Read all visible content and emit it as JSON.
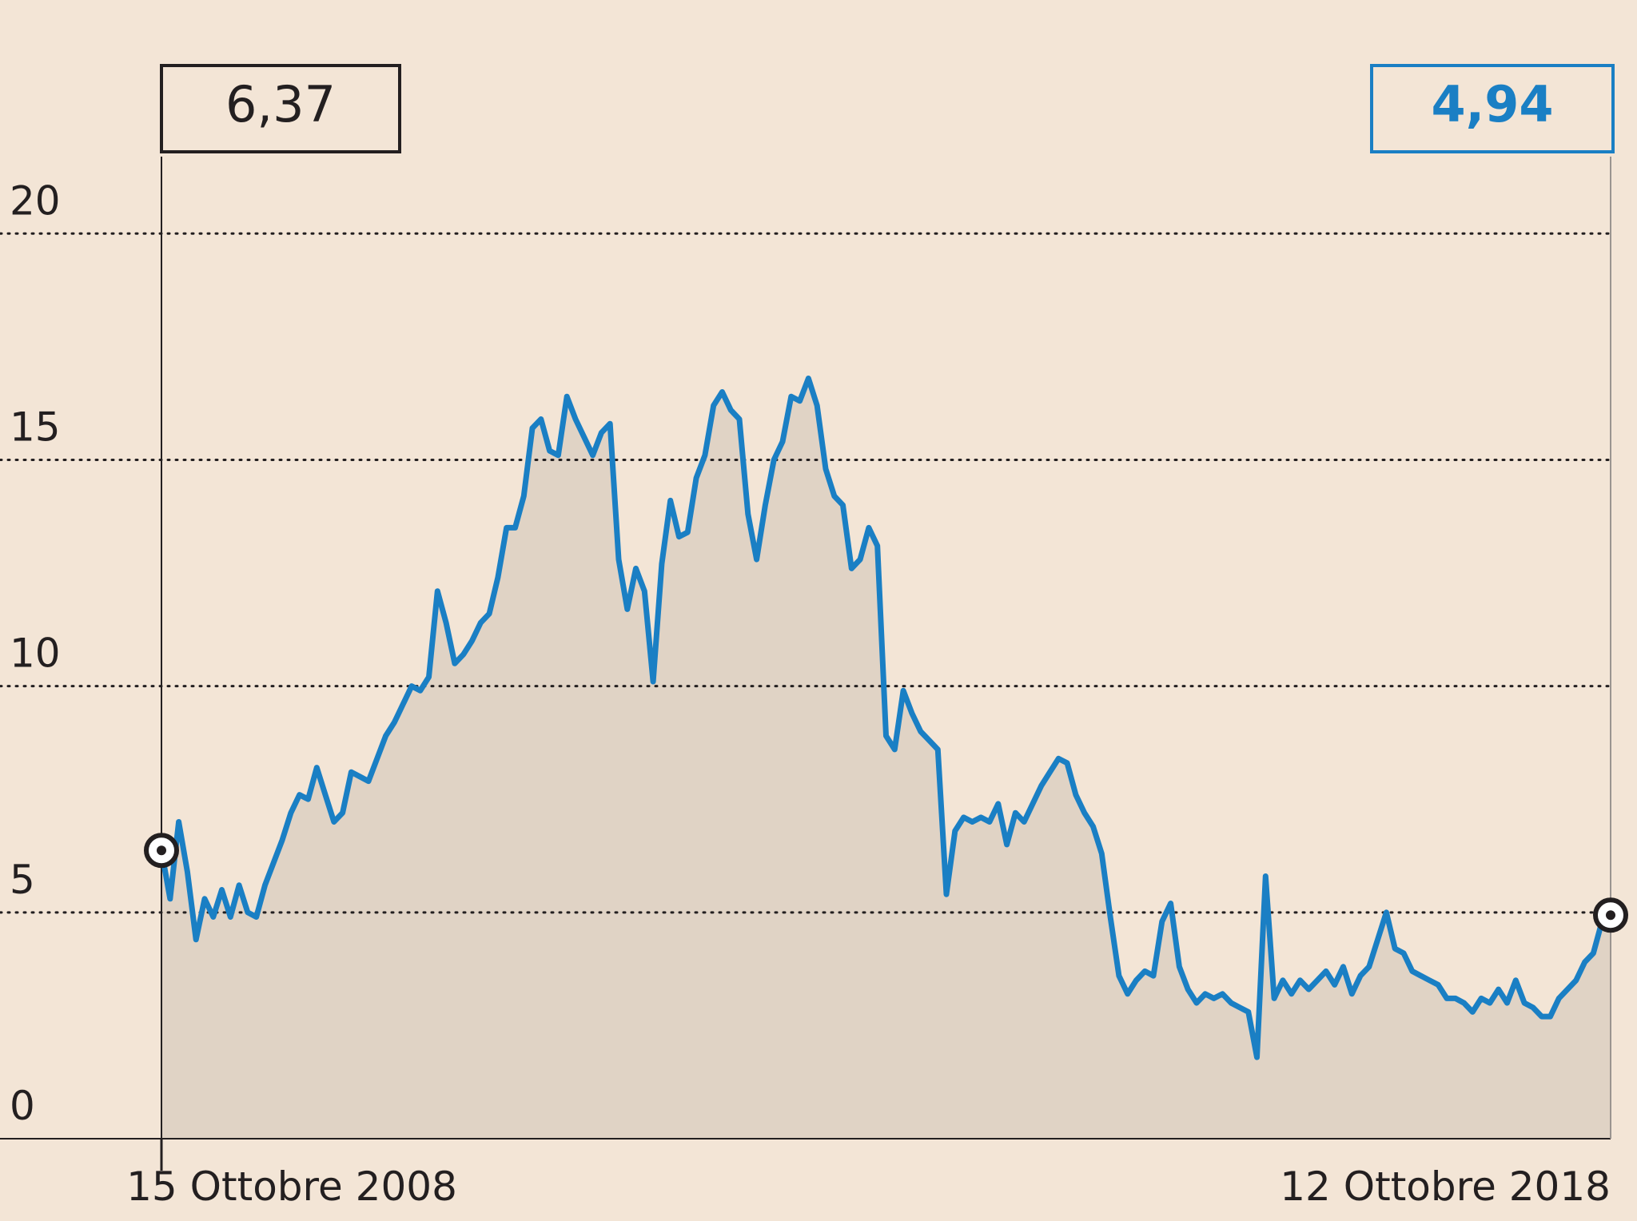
{
  "chart_data": {
    "type": "area",
    "x_labels": [
      "15 Ottobre 2008",
      "12 Ottobre 2018"
    ],
    "values": [
      6.37,
      5.3,
      7.0,
      5.9,
      4.4,
      5.3,
      4.9,
      5.5,
      4.9,
      5.6,
      5.0,
      4.9,
      5.6,
      6.1,
      6.6,
      7.2,
      7.6,
      7.5,
      8.2,
      7.6,
      7.0,
      7.2,
      8.1,
      8.0,
      7.9,
      8.4,
      8.9,
      9.2,
      9.6,
      10.0,
      9.9,
      10.2,
      12.1,
      11.4,
      10.5,
      10.7,
      11.0,
      11.4,
      11.6,
      12.4,
      13.5,
      13.5,
      14.2,
      15.7,
      15.9,
      15.2,
      15.1,
      16.4,
      15.9,
      15.5,
      15.1,
      15.6,
      15.8,
      12.8,
      11.7,
      12.6,
      12.1,
      10.1,
      12.7,
      14.1,
      13.3,
      13.4,
      14.6,
      15.1,
      16.2,
      16.5,
      16.1,
      15.9,
      13.8,
      12.8,
      14.0,
      15.0,
      15.4,
      16.4,
      16.3,
      16.8,
      16.2,
      14.8,
      14.2,
      14.0,
      12.6,
      12.8,
      13.5,
      13.1,
      8.9,
      8.6,
      9.9,
      9.4,
      9.0,
      8.8,
      8.6,
      5.4,
      6.8,
      7.1,
      7.0,
      7.1,
      7.0,
      7.4,
      6.5,
      7.2,
      7.0,
      7.4,
      7.8,
      8.1,
      8.4,
      8.3,
      7.6,
      7.2,
      6.9,
      6.3,
      4.9,
      3.6,
      3.2,
      3.5,
      3.7,
      3.6,
      4.8,
      5.2,
      3.8,
      3.3,
      3.0,
      3.2,
      3.1,
      3.2,
      3.0,
      2.9,
      2.8,
      1.8,
      5.8,
      3.1,
      3.5,
      3.2,
      3.5,
      3.3,
      3.5,
      3.7,
      3.4,
      3.8,
      3.2,
      3.6,
      3.8,
      4.4,
      5.0,
      4.2,
      4.1,
      3.7,
      3.6,
      3.5,
      3.4,
      3.1,
      3.1,
      3.0,
      2.8,
      3.1,
      3.0,
      3.3,
      3.0,
      3.5,
      3.0,
      2.9,
      2.7,
      2.7,
      3.1,
      3.3,
      3.5,
      3.9,
      4.1,
      4.8,
      4.94
    ],
    "annotations": [
      {
        "value": 6.37,
        "label": "6,37",
        "color": "#231f20"
      },
      {
        "value": 4.94,
        "label": "4,94",
        "color": "#1a7fc4"
      }
    ],
    "color": "#1a7fc4",
    "fill": "#e0d3c5",
    "ylim": [
      0,
      21.7
    ],
    "yticks": [
      0,
      5,
      10,
      15,
      20
    ],
    "grid": true
  }
}
